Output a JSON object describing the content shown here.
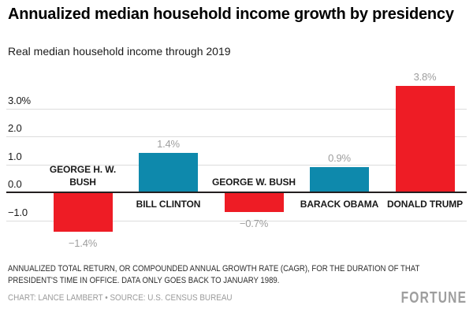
{
  "header": {
    "title": "Annualized median household income growth by presidency",
    "subtitle": "Real median household income through 2019"
  },
  "chart_data": {
    "type": "bar",
    "title": "Annualized median household income growth by presidency",
    "subtitle": "Real median household income through 2019",
    "categories": [
      "GEORGE H. W. BUSH",
      "BILL CLINTON",
      "GEORGE W. BUSH",
      "BARACK OBAMA",
      "DONALD TRUMP"
    ],
    "values": [
      -1.4,
      1.4,
      -0.7,
      0.9,
      3.8
    ],
    "value_labels": [
      "−1.4%",
      "1.4%",
      "−0.7%",
      "0.9%",
      "3.8%"
    ],
    "bar_colors": [
      "#ee1c25",
      "#0e89ac",
      "#ee1c25",
      "#0e89ac",
      "#ee1c25"
    ],
    "yticks": [
      {
        "value": 3.0,
        "label": "3.0%"
      },
      {
        "value": 2.0,
        "label": "2.0"
      },
      {
        "value": 1.0,
        "label": "1.0"
      },
      {
        "value": 0.0,
        "label": "0.0"
      },
      {
        "value": -1.0,
        "label": "−1.0"
      }
    ],
    "ylim": [
      -1.9,
      4.3
    ],
    "xlabel": "",
    "ylabel": "",
    "grid": "horizontal",
    "legend": "none",
    "colors": {
      "republican_red": "#ee1c25",
      "democrat_blue": "#0e89ac",
      "gridline": "#dcdcdc",
      "zero_line": "#231f20",
      "value_label": "#9e9e9e",
      "text": "#1a1a1a"
    }
  },
  "footer": {
    "note": "ANNUALIZED TOTAL RETURN, OR COMPOUNDED ANNUAL GROWTH RATE (CAGR), FOR THE DURATION OF THAT PRESIDENT'S TIME IN OFFICE. DATA ONLY GOES BACK TO JANUARY 1989.",
    "credit": "CHART: LANCE LAMBERT • SOURCE: U.S. CENSUS BUREAU",
    "logo": "FORTUNE"
  }
}
